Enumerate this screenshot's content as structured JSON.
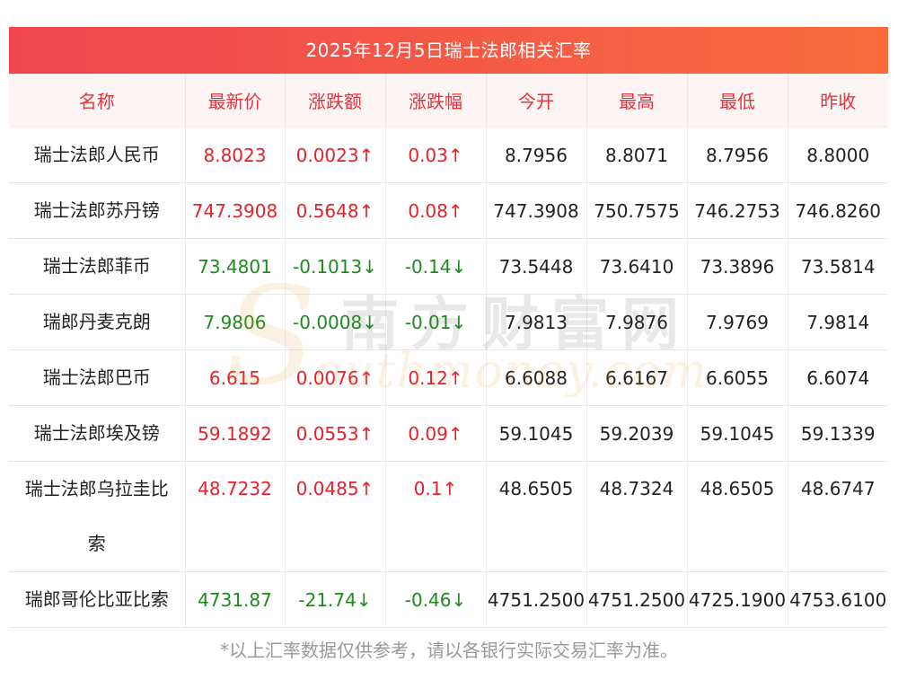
{
  "title": "2025年12月5日瑞士法郎相关汇率",
  "headers": [
    "名称",
    "最新价",
    "涨跌额",
    "涨跌幅",
    "今开",
    "最高",
    "最低",
    "昨收"
  ],
  "rows": [
    {
      "name": "瑞士法郎人民币",
      "latest": "8.8023",
      "change": "0.0023↑",
      "pct": "0.03↑",
      "open": "8.7956",
      "high": "8.8071",
      "low": "8.7956",
      "prev": "8.8000",
      "dir": "up"
    },
    {
      "name": "瑞士法郎苏丹镑",
      "latest": "747.3908",
      "change": "0.5648↑",
      "pct": "0.08↑",
      "open": "747.3908",
      "high": "750.7575",
      "low": "746.2753",
      "prev": "746.8260",
      "dir": "up"
    },
    {
      "name": "瑞士法郎菲币",
      "latest": "73.4801",
      "change": "-0.1013↓",
      "pct": "-0.14↓",
      "open": "73.5448",
      "high": "73.6410",
      "low": "73.3896",
      "prev": "73.5814",
      "dir": "down"
    },
    {
      "name": "瑞郎丹麦克朗",
      "latest": "7.9806",
      "change": "-0.0008↓",
      "pct": "-0.01↓",
      "open": "7.9813",
      "high": "7.9876",
      "low": "7.9769",
      "prev": "7.9814",
      "dir": "down"
    },
    {
      "name": "瑞士法郎巴币",
      "latest": "6.615",
      "change": "0.0076↑",
      "pct": "0.12↑",
      "open": "6.6088",
      "high": "6.6167",
      "low": "6.6055",
      "prev": "6.6074",
      "dir": "up"
    },
    {
      "name": "瑞士法郎埃及镑",
      "latest": "59.1892",
      "change": "0.0553↑",
      "pct": "0.09↑",
      "open": "59.1045",
      "high": "59.2039",
      "low": "59.1045",
      "prev": "59.1339",
      "dir": "up"
    },
    {
      "name": "瑞士法郎乌拉圭比索",
      "latest": "48.7232",
      "change": "0.0485↑",
      "pct": "0.1↑",
      "open": "48.6505",
      "high": "48.7324",
      "low": "48.6505",
      "prev": "48.6747",
      "dir": "up"
    },
    {
      "name": "瑞郎哥伦比亚比索",
      "latest": "4731.87",
      "change": "-21.74↓",
      "pct": "-0.46↓",
      "open": "4751.2500",
      "high": "4751.2500",
      "low": "4725.1900",
      "prev": "4753.6100",
      "dir": "down"
    }
  ],
  "watermark": {
    "cn": "南方财富网",
    "en": "outhmoney.com",
    "s": "S"
  },
  "footnote": "*以上汇率数据仅供参考，请以各银行实际交易汇率为准。",
  "colors": {
    "up": "#e8202a",
    "down": "#1f8a1f",
    "header_text": "#e8303a",
    "title_bg": "#f0454f"
  }
}
